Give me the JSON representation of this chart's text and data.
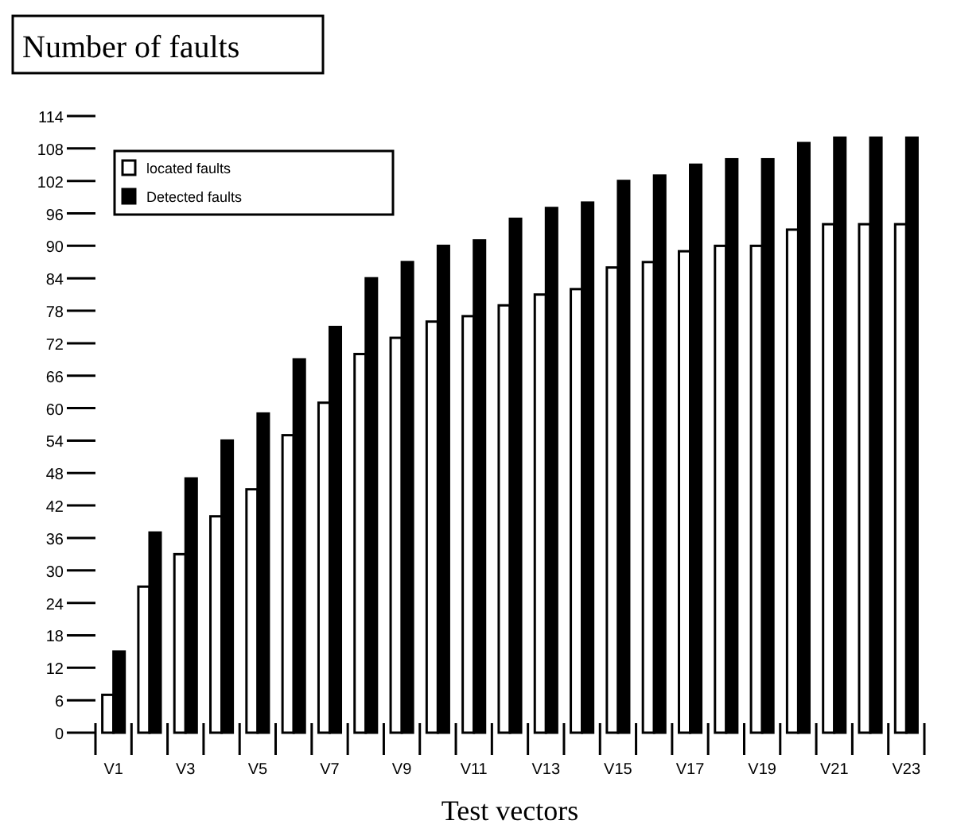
{
  "chart_data": {
    "type": "bar",
    "title": "Number of faults",
    "xlabel": "Test vectors",
    "categories": [
      "V1",
      null,
      "V3",
      null,
      "V5",
      null,
      "V7",
      null,
      "V9",
      null,
      "V11",
      null,
      "V13",
      null,
      "V15",
      null,
      "V17",
      null,
      "V19",
      null,
      "V21",
      null,
      "V23"
    ],
    "series": [
      {
        "name": "located faults",
        "color": "#ffffff",
        "values": [
          7,
          27,
          33,
          40,
          45,
          55,
          61,
          70,
          73,
          76,
          77,
          79,
          81,
          82,
          86,
          87,
          89,
          90,
          90,
          93,
          94,
          94,
          94
        ]
      },
      {
        "name": "Detected faults",
        "color": "#000000",
        "values": [
          15,
          37,
          47,
          54,
          59,
          69,
          75,
          84,
          87,
          90,
          91,
          95,
          97,
          98,
          102,
          103,
          105,
          106,
          106,
          109,
          110,
          110,
          110
        ]
      }
    ],
    "ylim": [
      0,
      114
    ],
    "yticks": [
      0,
      6,
      12,
      18,
      24,
      30,
      36,
      42,
      48,
      54,
      60,
      66,
      72,
      78,
      84,
      90,
      96,
      102,
      108,
      114
    ],
    "legend": "top left",
    "grid": false
  }
}
